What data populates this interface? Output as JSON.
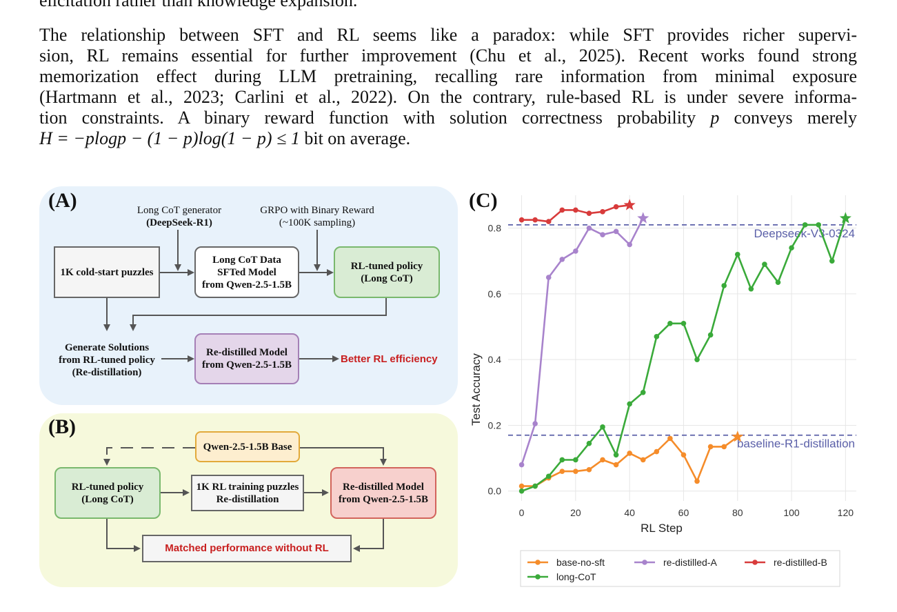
{
  "text": {
    "top_fragment": "elicitation rather than knowledge expansion.",
    "lines": [
      "The relationship between SFT and RL seems like a paradox: while SFT provides richer supervi-",
      "sion, RL remains essential for further improvement (Chu et al., 2025). Recent works found strong",
      "memorization effect during LLM pretraining, recalling rare information from minimal exposure",
      "(Hartmann et al., 2023; Carlini et al., 2022). On the contrary, rule-based RL is under severe informa-",
      "tion constraints. A binary reward function with solution correctness probability"
    ],
    "line5_math": "p",
    "line5_end": "conveys merely",
    "line6_math": "H = −plogp − (1 − p)log(1 − p) ≤ 1",
    "line6_end": "bit on average."
  },
  "figure": {
    "panel_a": {
      "label": "(A)",
      "generator_title": "Long CoT generator",
      "generator_name": "(DeepSeek-R1)",
      "grpo_title": "GRPO with Binary Reward",
      "grpo_sub": "(~100K sampling)",
      "cold_start": "1K cold-start puzzles",
      "sft_line1": "Long CoT Data",
      "sft_line2": "SFTed Model",
      "sft_line3": "from Qwen-2.5-1.5B",
      "rl_line1": "RL-tuned policy",
      "rl_line2": "(Long CoT)",
      "gen_line1": "Generate Solutions",
      "gen_line2": "from RL-tuned policy",
      "gen_line3": "(Re-distillation)",
      "redistilled_line1": "Re-distilled Model",
      "redistilled_line2": "from Qwen-2.5-1.5B",
      "outcome": "Better RL efficiency"
    },
    "panel_b": {
      "label": "(B)",
      "base": "Qwen-2.5-1.5B Base",
      "rl_line1": "RL-tuned policy",
      "rl_line2": "(Long CoT)",
      "train_line1": "1K RL training puzzles",
      "train_line2": "Re-distillation",
      "redist_line1": "Re-distilled Model",
      "redist_line2": "from Qwen-2.5-1.5B",
      "outcome": "Matched performance without RL"
    },
    "panel_c": {
      "label": "(C)"
    }
  },
  "chart_data": {
    "type": "line",
    "xlabel": "RL Step",
    "ylabel": "Test Accuracy",
    "xlim": [
      -5,
      124
    ],
    "ylim": [
      -0.03,
      0.9
    ],
    "xticks": [
      0,
      20,
      40,
      60,
      80,
      100,
      120
    ],
    "yticks": [
      0.0,
      0.2,
      0.4,
      0.6,
      0.8
    ],
    "grid": true,
    "legend_position": "bottom",
    "reference_lines": [
      {
        "label": "Deepseek-V3-0324",
        "y": 0.81,
        "color": "#5a5fa8"
      },
      {
        "label": "baseline-R1-distillation",
        "y": 0.17,
        "color": "#5a5fa8"
      }
    ],
    "series": [
      {
        "name": "base-no-sft",
        "color": "#f58c2a",
        "x": [
          0,
          5,
          10,
          15,
          20,
          25,
          30,
          35,
          40,
          45,
          50,
          55,
          60,
          65,
          70,
          75,
          80
        ],
        "y": [
          0.015,
          0.015,
          0.04,
          0.06,
          0.06,
          0.065,
          0.095,
          0.08,
          0.115,
          0.095,
          0.12,
          0.16,
          0.11,
          0.03,
          0.135,
          0.135,
          0.165
        ],
        "star_last": true
      },
      {
        "name": "re-distilled-A",
        "color": "#a883cc",
        "x": [
          0,
          5,
          10,
          15,
          20,
          25,
          30,
          35,
          40,
          45
        ],
        "y": [
          0.08,
          0.205,
          0.65,
          0.705,
          0.73,
          0.8,
          0.78,
          0.79,
          0.75,
          0.83
        ],
        "star_last": true
      },
      {
        "name": "re-distilled-B",
        "color": "#d83b3b",
        "x": [
          0,
          5,
          10,
          15,
          20,
          25,
          30,
          35,
          40
        ],
        "y": [
          0.825,
          0.825,
          0.82,
          0.855,
          0.855,
          0.845,
          0.85,
          0.865,
          0.87
        ],
        "star_last": true
      },
      {
        "name": "long-CoT",
        "color": "#3aaa3a",
        "x": [
          0,
          5,
          10,
          15,
          20,
          25,
          30,
          35,
          40,
          45,
          50,
          55,
          60,
          65,
          70,
          75,
          80,
          85,
          90,
          95,
          100,
          105,
          110,
          115,
          120
        ],
        "y": [
          0.0,
          0.015,
          0.045,
          0.095,
          0.095,
          0.145,
          0.195,
          0.11,
          0.265,
          0.3,
          0.47,
          0.51,
          0.51,
          0.4,
          0.475,
          0.625,
          0.72,
          0.615,
          0.69,
          0.635,
          0.74,
          0.81,
          0.81,
          0.7,
          0.83
        ],
        "star_last": true
      }
    ]
  }
}
